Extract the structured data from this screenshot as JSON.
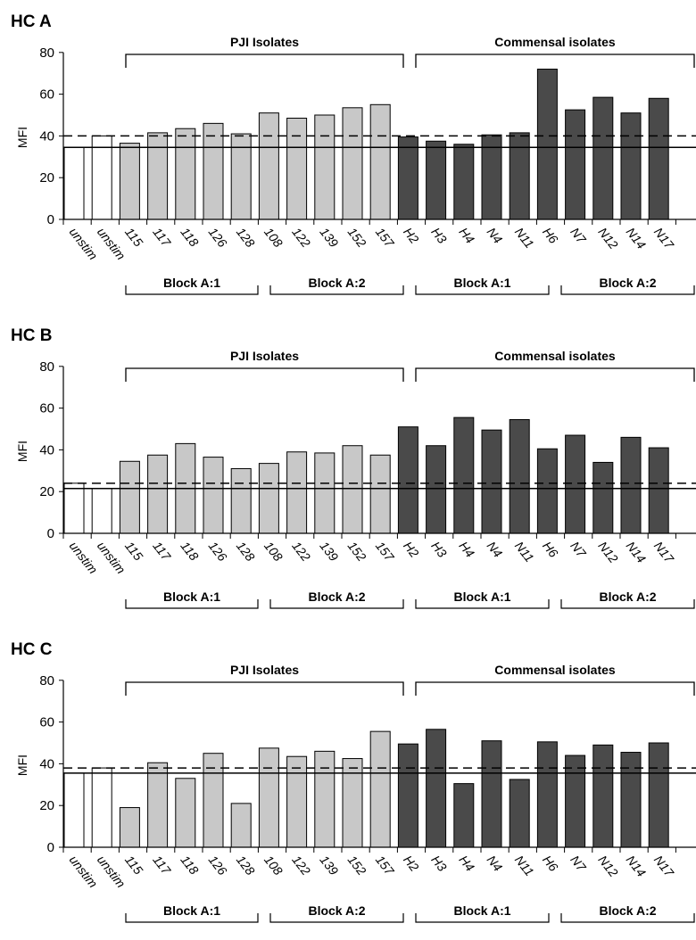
{
  "colors": {
    "control": "#ffffff",
    "pji": "#c8c8c8",
    "commensal": "#4a4a4a",
    "outline": "#000000"
  },
  "chart_data": [
    {
      "type": "bar",
      "title": "HC A",
      "ylabel": "MFI",
      "ylim": [
        0,
        80
      ],
      "yticks": [
        0,
        20,
        40,
        60,
        80
      ],
      "categories": [
        "unstim",
        "unstim",
        "115",
        "117",
        "118",
        "126",
        "128",
        "108",
        "122",
        "139",
        "152",
        "157",
        "H2",
        "H3",
        "H4",
        "N4",
        "N11",
        "H6",
        "N7",
        "N12",
        "N14",
        "N17"
      ],
      "values": [
        34.5,
        40,
        36.5,
        41.5,
        43.5,
        46,
        41,
        51,
        48.5,
        50,
        53.5,
        55,
        39.5,
        37.5,
        36,
        40.5,
        41.5,
        72,
        52.5,
        58.5,
        51,
        58
      ],
      "groups": [
        "control",
        "control",
        "pji",
        "pji",
        "pji",
        "pji",
        "pji",
        "pji",
        "pji",
        "pji",
        "pji",
        "pji",
        "commensal",
        "commensal",
        "commensal",
        "commensal",
        "commensal",
        "commensal",
        "commensal",
        "commensal",
        "commensal",
        "commensal"
      ],
      "reference_lines": [
        34.5,
        40
      ],
      "group_labels": [
        "PJI Isolates",
        "Commensal isolates"
      ],
      "block_labels": [
        "Block A:1",
        "Block A:2",
        "Block A:1",
        "Block A:2"
      ]
    },
    {
      "type": "bar",
      "title": "HC B",
      "ylabel": "MFI",
      "ylim": [
        0,
        80
      ],
      "yticks": [
        0,
        20,
        40,
        60,
        80
      ],
      "categories": [
        "unstim",
        "unstim",
        "115",
        "117",
        "118",
        "126",
        "128",
        "108",
        "122",
        "139",
        "152",
        "157",
        "H2",
        "H3",
        "H4",
        "N4",
        "N11",
        "H6",
        "N7",
        "N12",
        "N14",
        "N17"
      ],
      "values": [
        24,
        21.5,
        34.5,
        37.5,
        43,
        36.5,
        31,
        33.5,
        39,
        38.5,
        42,
        37.5,
        51,
        42,
        55.5,
        49.5,
        54.5,
        40.5,
        47,
        34,
        46,
        41
      ],
      "groups": [
        "control",
        "control",
        "pji",
        "pji",
        "pji",
        "pji",
        "pji",
        "pji",
        "pji",
        "pji",
        "pji",
        "pji",
        "commensal",
        "commensal",
        "commensal",
        "commensal",
        "commensal",
        "commensal",
        "commensal",
        "commensal",
        "commensal",
        "commensal"
      ],
      "reference_lines": [
        21.5,
        24
      ],
      "group_labels": [
        "PJI Isolates",
        "Commensal isolates"
      ],
      "block_labels": [
        "Block A:1",
        "Block A:2",
        "Block A:1",
        "Block A:2"
      ]
    },
    {
      "type": "bar",
      "title": "HC C",
      "ylabel": "MFI",
      "ylim": [
        0,
        80
      ],
      "yticks": [
        0,
        20,
        40,
        60,
        80
      ],
      "categories": [
        "unstim",
        "unstim",
        "115",
        "117",
        "118",
        "126",
        "128",
        "108",
        "122",
        "139",
        "152",
        "157",
        "H2",
        "H3",
        "H4",
        "N4",
        "N11",
        "H6",
        "N7",
        "N12",
        "N14",
        "N17"
      ],
      "values": [
        35.5,
        38,
        19,
        40.5,
        33,
        45,
        21,
        47.5,
        43.5,
        46,
        42.5,
        55.5,
        49.5,
        56.5,
        30.5,
        51,
        32.5,
        50.5,
        44,
        49,
        45.5,
        50
      ],
      "groups": [
        "control",
        "control",
        "pji",
        "pji",
        "pji",
        "pji",
        "pji",
        "pji",
        "pji",
        "pji",
        "pji",
        "pji",
        "commensal",
        "commensal",
        "commensal",
        "commensal",
        "commensal",
        "commensal",
        "commensal",
        "commensal",
        "commensal",
        "commensal"
      ],
      "reference_lines": [
        35.5,
        38
      ],
      "group_labels": [
        "PJI Isolates",
        "Commensal isolates"
      ],
      "block_labels": [
        "Block A:1",
        "Block A:2",
        "Block A:1",
        "Block A:2"
      ]
    }
  ]
}
